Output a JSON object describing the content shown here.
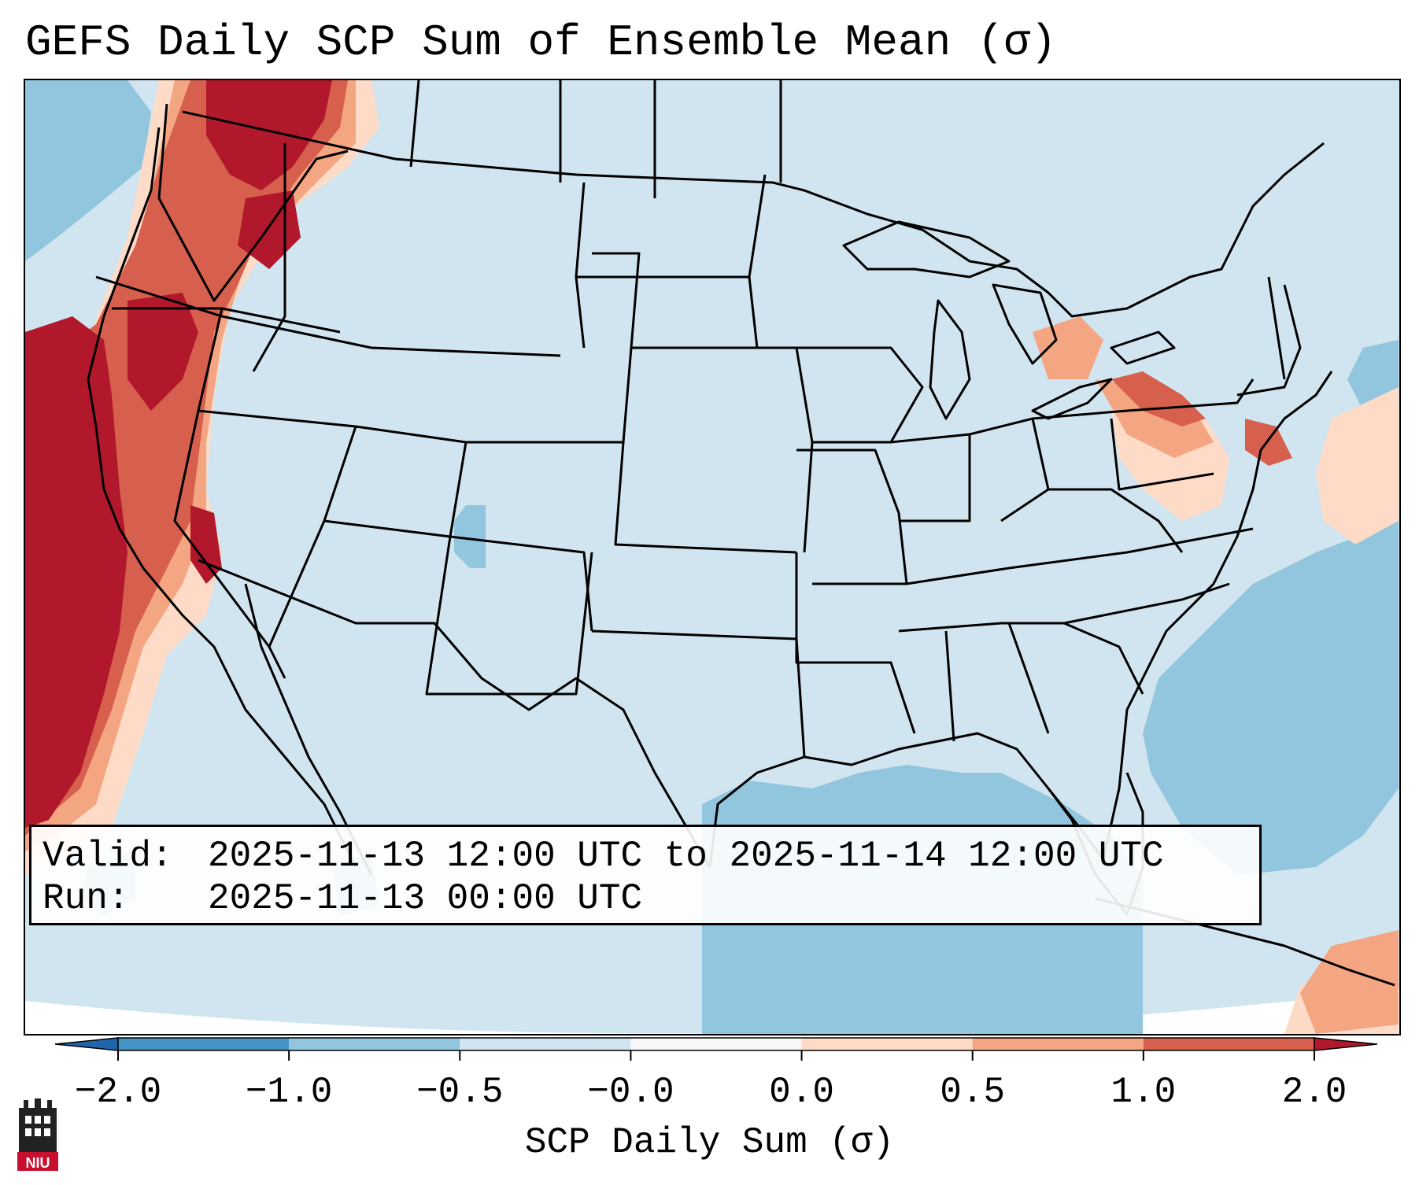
{
  "title": "GEFS Daily SCP Sum of Ensemble Mean (σ)",
  "info": {
    "valid_label": "Valid:",
    "valid_value": "2025-11-13 12:00 UTC to 2025-11-14 12:00 UTC",
    "run_label": "Run:",
    "run_value": "2025-11-13 00:00 UTC"
  },
  "colorbar": {
    "label": "SCP Daily Sum (σ)",
    "ticks": [
      "−2.0",
      "−1.0",
      "−0.5",
      "−0.0",
      "0.0",
      "0.5",
      "1.0",
      "2.0"
    ],
    "colors": [
      "#4393c3",
      "#92c5de",
      "#d1e5f0",
      "#f7f7f7",
      "#fddbc7",
      "#f4a582",
      "#d6604d"
    ],
    "extend_min_color": "#2166ac",
    "extend_max_color": "#b2182b"
  },
  "map": {
    "background_color": "#d1e5f0",
    "outside_color": "#ffffff"
  },
  "logo": {
    "text": "NIU"
  }
}
